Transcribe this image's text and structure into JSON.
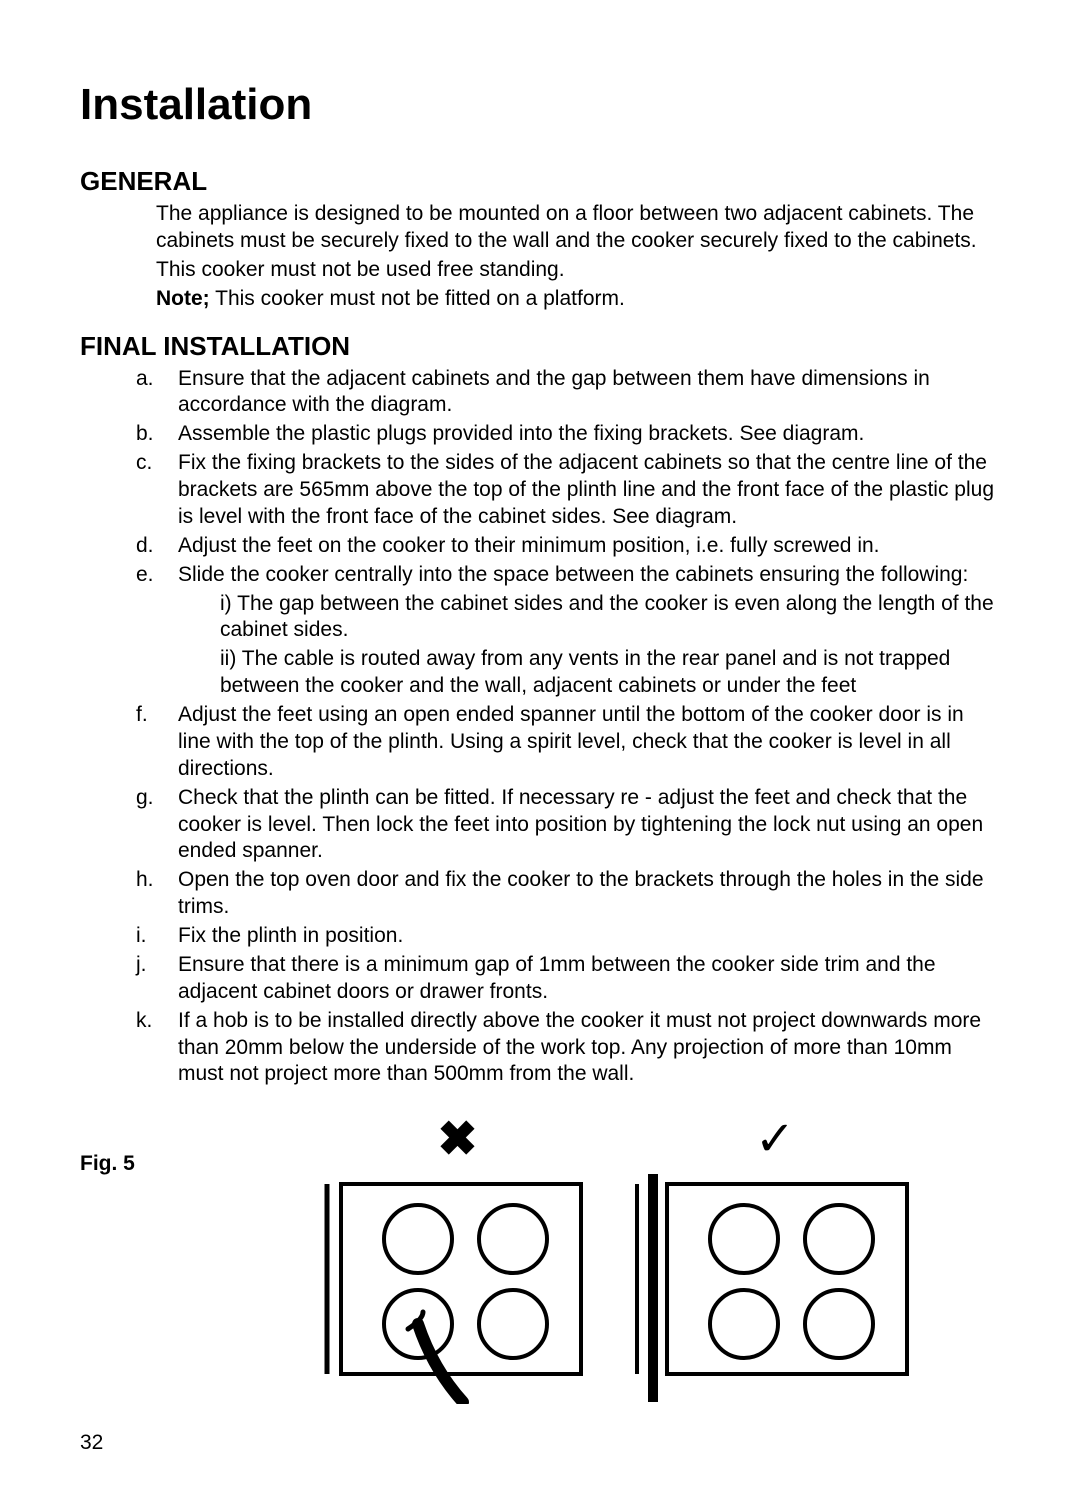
{
  "page": {
    "title": "Installation",
    "number": "32"
  },
  "general": {
    "heading": "GENERAL",
    "para1": "The appliance is designed to be mounted on a floor between two adjacent cabinets. The cabinets must be securely fixed to the wall and the cooker securely fixed to the cabinets.",
    "para2": "This cooker must not be used free standing.",
    "note_label": "Note;",
    "note_text": " This cooker must not be fitted on a platform."
  },
  "final": {
    "heading": "FINAL INSTALLATION",
    "items": [
      {
        "m": "a.",
        "t": "Ensure that the adjacent cabinets and the gap between them have dimensions in accordance with the diagram."
      },
      {
        "m": "b.",
        "t": "Assemble the plastic plugs provided into the fixing brackets. See diagram."
      },
      {
        "m": "c.",
        "t": "Fix the fixing brackets to the sides of the adjacent cabinets so that the centre line of the brackets are 565mm above the top of the plinth line and the front face of the plastic plug is level with the front face of the cabinet sides. See diagram."
      },
      {
        "m": "d.",
        "t": "Adjust the feet on the cooker to their minimum position, i.e. fully screwed in."
      },
      {
        "m": "e.",
        "t": "Slide the cooker centrally into the space between the cabinets ensuring the following:",
        "sub": [
          "i) The gap between the cabinet sides and the cooker is even along the length of the cabinet sides.",
          "ii) The cable is routed away from any vents in the rear panel and is not trapped between the cooker and the wall, adjacent cabinets or under the feet"
        ]
      },
      {
        "m": "f.",
        "t": "Adjust the feet using an open ended spanner until the bottom of the cooker door is in line with the top of the plinth. Using a spirit level, check that the cooker is level in all directions."
      },
      {
        "m": "g.",
        "t": "Check that the plinth can be fitted. If necessary re - adjust the feet and check that the cooker is level. Then lock the feet into position by tightening the lock nut using an open ended spanner."
      },
      {
        "m": "h.",
        "t": "Open the top oven door and fix the cooker to the brackets through the holes in the side trims."
      },
      {
        "m": "i.",
        "t": "Fix the plinth in position."
      },
      {
        "m": "j.",
        "t": "Ensure that there is a minimum gap of 1mm between the cooker side trim and the adjacent cabinet doors or drawer fronts."
      },
      {
        "m": "k.",
        "t": "If a hob is to be installed directly above the cooker it must not project downwards more than 20mm below the underside of the work top. Any projection of more than 10mm must not project more than 500mm from the wall."
      }
    ]
  },
  "figure": {
    "label": "Fig. 5",
    "wrong_mark": "✖",
    "right_mark": "✓",
    "stroke": "#000000",
    "stroke_width": 4,
    "thick_stroke": 12,
    "hob_w": 240,
    "hob_h": 190
  }
}
